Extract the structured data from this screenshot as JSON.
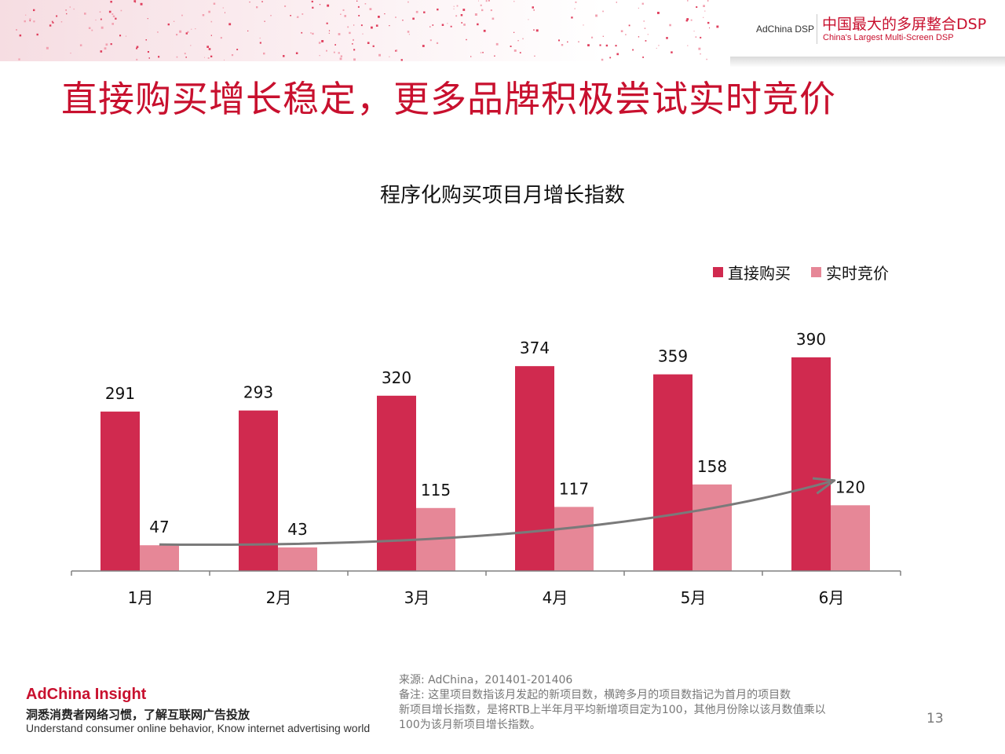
{
  "header": {
    "brand_small": "AdChina DSP",
    "brand_cn": "中国最大的多屏整合DSP",
    "brand_en": "China's Largest Multi-Screen DSP"
  },
  "slide_title": "直接购买增长稳定，更多品牌积极尝试实时竞价",
  "colors": {
    "accent": "#c8102e",
    "series_direct": "#d02a4f",
    "series_rtb": "#e68797",
    "trend_arrow": "#7a7a7a"
  },
  "chart_data": {
    "type": "bar",
    "title": "程序化购买项目月增长指数",
    "categories": [
      "1月",
      "2月",
      "3月",
      "4月",
      "5月",
      "6月"
    ],
    "series": [
      {
        "name": "直接购买",
        "values": [
          291,
          293,
          320,
          374,
          359,
          390
        ]
      },
      {
        "name": "实时竞价",
        "values": [
          47,
          43,
          115,
          117,
          158,
          120
        ]
      }
    ],
    "ylim": [
      0,
      390
    ],
    "grid": false,
    "legend_position": "top-right",
    "data_labels": true,
    "trend_arrow_on": "实时竞价"
  },
  "footer": {
    "brand": "AdChina Insight",
    "tagline_cn": "洞悉消费者网络习惯，了解互联网广告投放",
    "tagline_en": "Understand consumer online behavior, Know internet advertising world",
    "source": "来源: AdChina，201401-201406",
    "note_line1": "备注: 这里项目数指该月发起的新项目数，横跨多月的项目数指记为首月的项目数",
    "note_line2": "新项目增长指数，是将RTB上半年月平均新增项目定为100，其他月份除以该月数值乘以",
    "note_line3": "100为该月新项目增长指数。",
    "page_number": "13"
  }
}
